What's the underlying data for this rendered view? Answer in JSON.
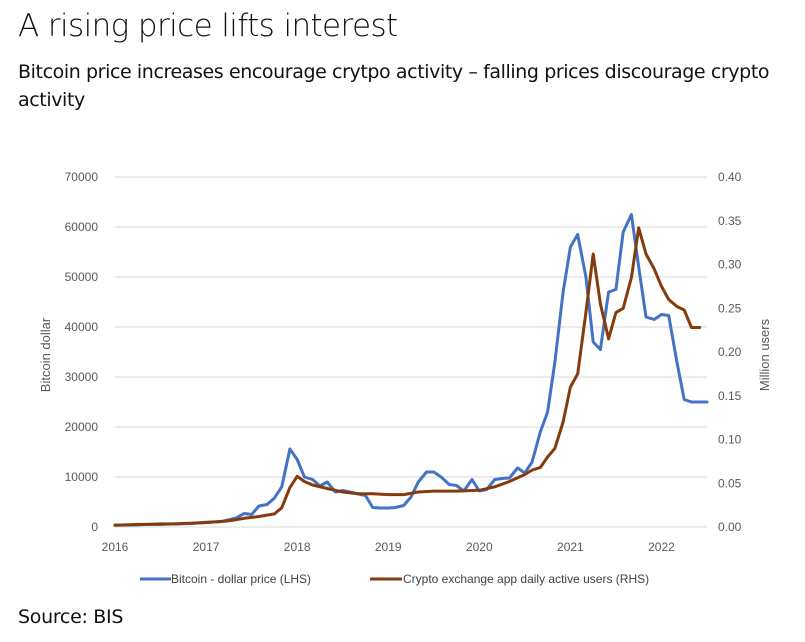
{
  "header": {
    "title": "A rising price lifts interest",
    "subtitle": "Bitcoin price increases encourage crytpo activity – falling prices discourage crypto activity"
  },
  "footer": {
    "source": "Source: BIS"
  },
  "chart_data": {
    "type": "line",
    "title": "A rising price lifts interest",
    "subtitle": "Bitcoin price increases encourage crytpo activity – falling prices discourage crypto activity",
    "xlabel": "",
    "ylabel": "Bitcoin dollar",
    "y2label": "Million users",
    "xlim": [
      2016.0,
      2022.5
    ],
    "ylim": [
      0,
      70000
    ],
    "y2lim": [
      0,
      0.4
    ],
    "x_ticks": [
      "2016",
      "2017",
      "2018",
      "2019",
      "2020",
      "2021",
      "2022"
    ],
    "y_ticks": [
      "0",
      "10000",
      "20000",
      "30000",
      "40000",
      "50000",
      "60000",
      "70000"
    ],
    "y2_ticks": [
      "0.00",
      "0.05",
      "0.10",
      "0.15",
      "0.20",
      "0.25",
      "0.30",
      "0.35",
      "0.40"
    ],
    "grid": true,
    "legend_position": "bottom",
    "series": [
      {
        "name": "Bitcoin - dollar price (LHS)",
        "axis": "left",
        "color": "#4472C4",
        "x": [
          2016.0,
          2016.25,
          2016.5,
          2016.67,
          2016.83,
          2017.0,
          2017.17,
          2017.33,
          2017.42,
          2017.5,
          2017.58,
          2017.67,
          2017.75,
          2017.83,
          2017.92,
          2018.0,
          2018.08,
          2018.17,
          2018.25,
          2018.33,
          2018.42,
          2018.5,
          2018.58,
          2018.67,
          2018.75,
          2018.83,
          2018.92,
          2019.0,
          2019.08,
          2019.17,
          2019.25,
          2019.33,
          2019.42,
          2019.5,
          2019.58,
          2019.67,
          2019.75,
          2019.83,
          2019.92,
          2020.0,
          2020.08,
          2020.17,
          2020.25,
          2020.33,
          2020.42,
          2020.5,
          2020.58,
          2020.67,
          2020.75,
          2020.83,
          2020.92,
          2021.0,
          2021.08,
          2021.17,
          2021.25,
          2021.33,
          2021.42,
          2021.5,
          2021.58,
          2021.67,
          2021.75,
          2021.83,
          2021.92,
          2022.0,
          2022.08,
          2022.17,
          2022.25,
          2022.33,
          2022.42,
          2022.5
        ],
        "values": [
          400,
          430,
          650,
          600,
          700,
          950,
          1100,
          1800,
          2700,
          2500,
          4200,
          4500,
          5800,
          8000,
          15600,
          13500,
          10000,
          9500,
          8200,
          9000,
          7000,
          7300,
          7000,
          6600,
          6300,
          3900,
          3800,
          3800,
          3900,
          4300,
          6000,
          9000,
          11000,
          11000,
          10000,
          8500,
          8300,
          7200,
          9500,
          7200,
          7500,
          9500,
          9700,
          9800,
          11800,
          10800,
          13000,
          19000,
          23000,
          33000,
          47000,
          56000,
          58500,
          50000,
          37000,
          35500,
          47000,
          47500,
          59000,
          62500,
          52000,
          42000,
          41500,
          42500,
          42300,
          33000,
          25500,
          25000,
          25000,
          25000
        ]
      },
      {
        "name": "Crypto exchange app daily active users (RHS)",
        "axis": "right",
        "color": "#843C0C",
        "x": [
          2016.0,
          2016.25,
          2016.5,
          2016.75,
          2017.0,
          2017.25,
          2017.42,
          2017.58,
          2017.75,
          2017.83,
          2017.92,
          2018.0,
          2018.08,
          2018.17,
          2018.33,
          2018.5,
          2018.67,
          2018.83,
          2019.0,
          2019.17,
          2019.33,
          2019.5,
          2019.75,
          2020.0,
          2020.17,
          2020.33,
          2020.5,
          2020.58,
          2020.67,
          2020.75,
          2020.83,
          2020.92,
          2021.0,
          2021.08,
          2021.17,
          2021.25,
          2021.33,
          2021.42,
          2021.5,
          2021.58,
          2021.67,
          2021.75,
          2021.83,
          2021.92,
          2022.0,
          2022.08,
          2022.17,
          2022.25,
          2022.33,
          2022.42
        ],
        "values": [
          0.002,
          0.003,
          0.003,
          0.004,
          0.005,
          0.007,
          0.01,
          0.012,
          0.015,
          0.022,
          0.045,
          0.058,
          0.052,
          0.048,
          0.044,
          0.04,
          0.038,
          0.038,
          0.037,
          0.037,
          0.04,
          0.041,
          0.041,
          0.042,
          0.046,
          0.052,
          0.06,
          0.065,
          0.068,
          0.08,
          0.09,
          0.12,
          0.16,
          0.175,
          0.245,
          0.312,
          0.255,
          0.215,
          0.245,
          0.25,
          0.285,
          0.342,
          0.312,
          0.295,
          0.275,
          0.26,
          0.252,
          0.248,
          0.228,
          0.228
        ]
      }
    ]
  }
}
